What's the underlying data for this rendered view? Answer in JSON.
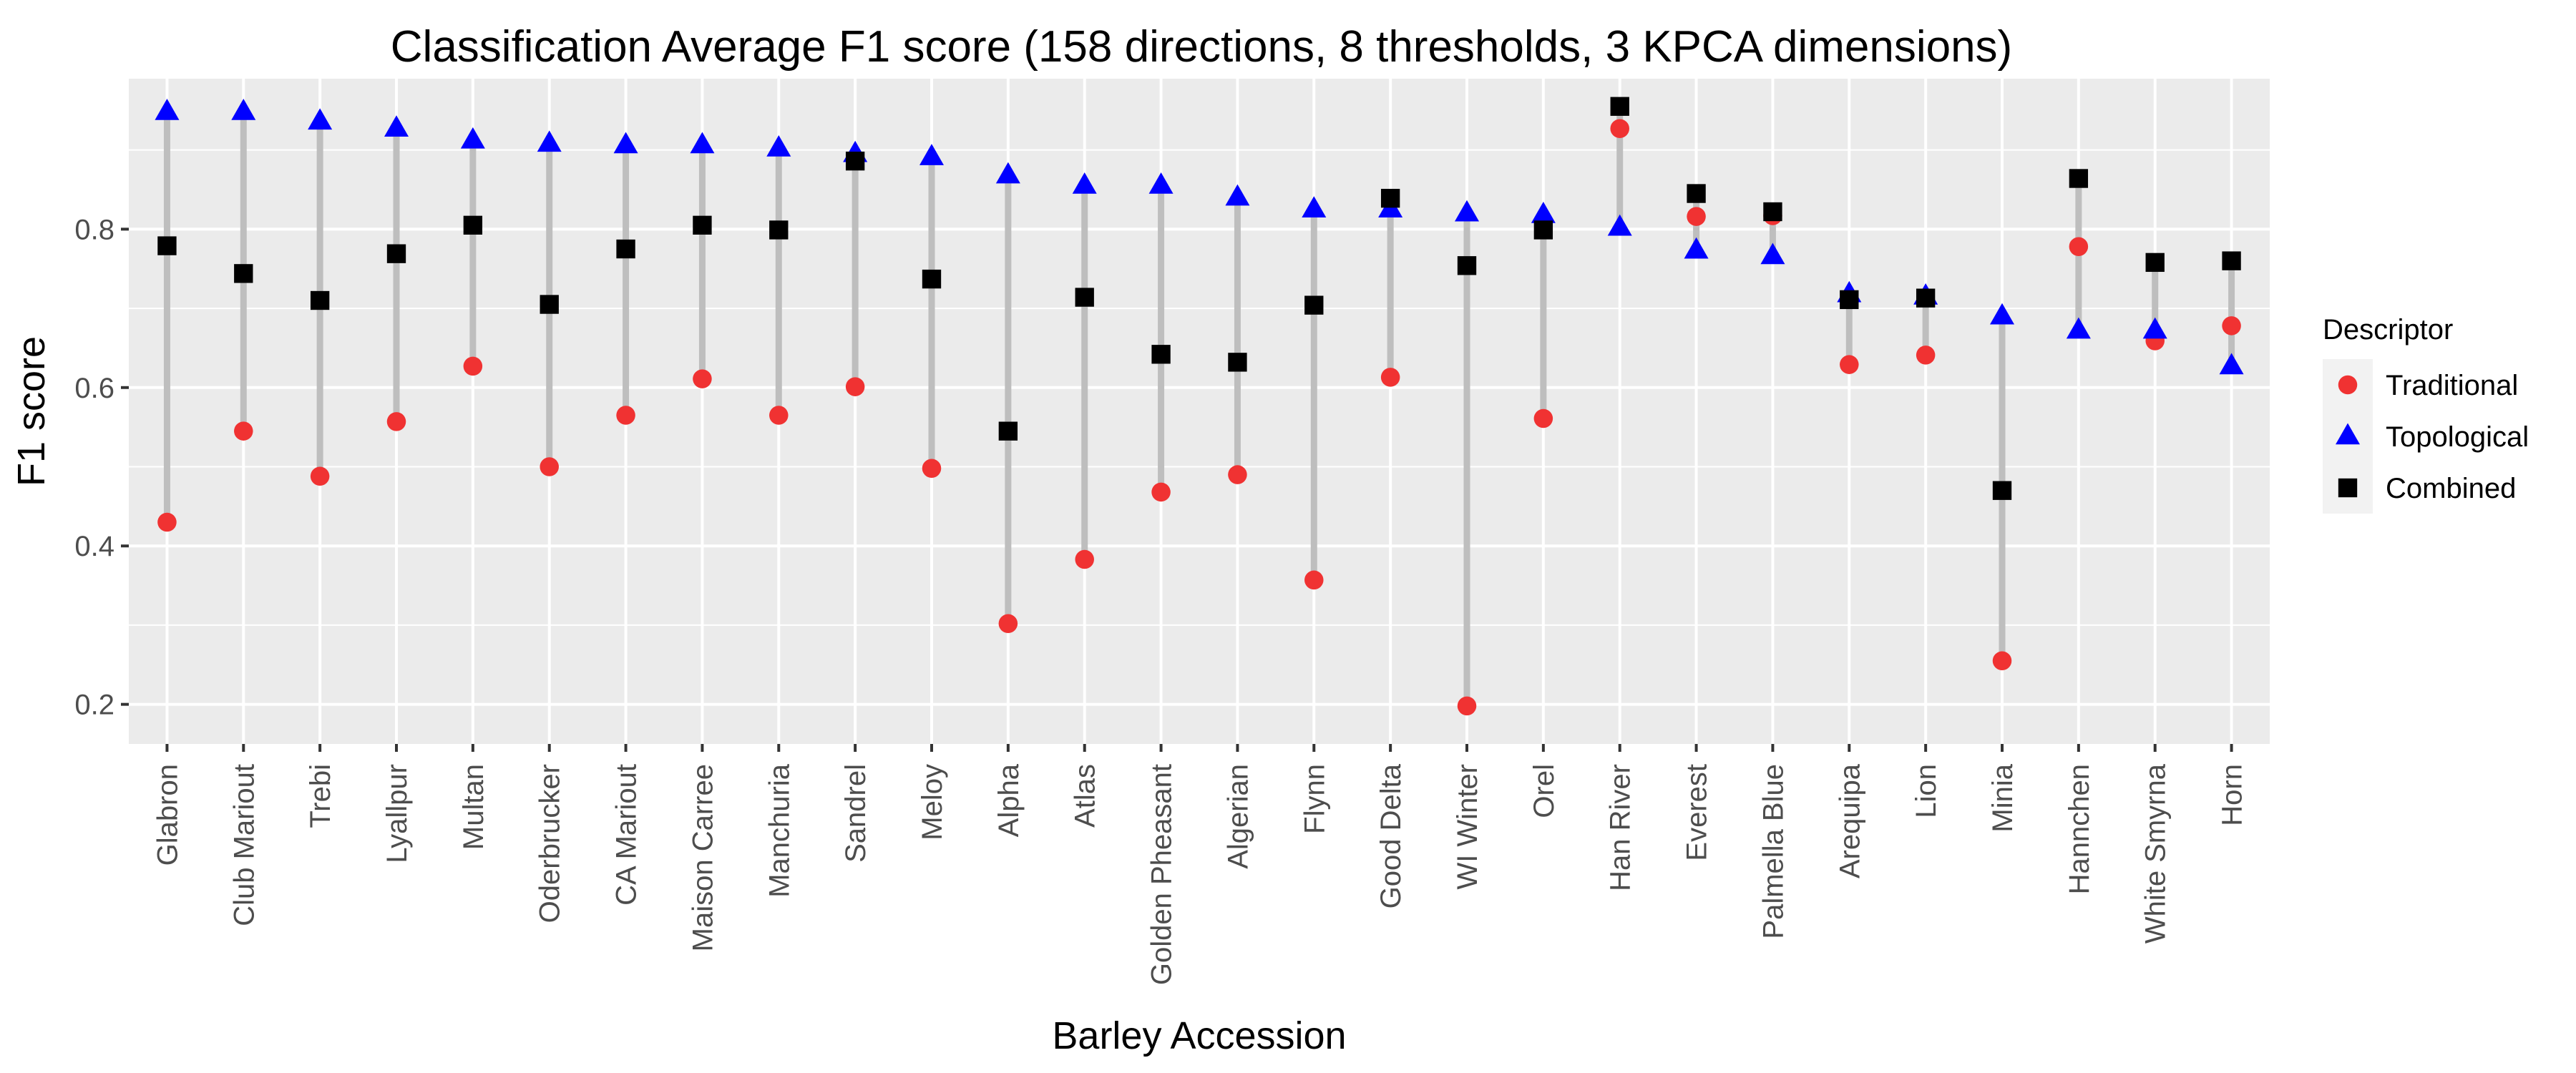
{
  "chart_data": {
    "type": "scatter",
    "title": "Classification Average F1 score (158 directions, 8 thresholds, 3 KPCA dimensions)",
    "xlabel": "Barley Accession",
    "ylabel": "F1 score",
    "ylim": [
      0.15,
      0.99
    ],
    "yticks": [
      0.2,
      0.4,
      0.6,
      0.8
    ],
    "ytick_labels": [
      "0.2",
      "0.4",
      "0.6",
      "0.8"
    ],
    "grid": true,
    "legend_title": "Descriptor",
    "legend_position": "right",
    "categories": [
      "Glabron",
      "Club Mariout",
      "Trebi",
      "Lyallpur",
      "Multan",
      "Oderbrucker",
      "CA Mariout",
      "Maison Carree",
      "Manchuria",
      "Sandrel",
      "Meloy",
      "Alpha",
      "Atlas",
      "Golden Pheasant",
      "Algerian",
      "Flynn",
      "Good Delta",
      "WI Winter",
      "Orel",
      "Han River",
      "Everest",
      "Palmella Blue",
      "Arequipa",
      "Lion",
      "Minia",
      "Hannchen",
      "White Smyrna",
      "Horn"
    ],
    "series": [
      {
        "name": "Traditional",
        "marker": "circle",
        "color": "#f03232",
        "values": [
          0.43,
          0.545,
          0.488,
          0.557,
          0.627,
          0.5,
          0.565,
          0.611,
          0.565,
          0.601,
          0.498,
          0.302,
          0.383,
          0.468,
          0.49,
          0.357,
          0.613,
          0.198,
          0.561,
          0.927,
          0.816,
          0.817,
          0.629,
          0.641,
          0.255,
          0.778,
          0.659,
          0.678
        ]
      },
      {
        "name": "Topological",
        "marker": "triangle",
        "color": "#0000ff",
        "values": [
          0.948,
          0.948,
          0.936,
          0.927,
          0.912,
          0.908,
          0.906,
          0.906,
          0.902,
          0.895,
          0.891,
          0.868,
          0.855,
          0.855,
          0.84,
          0.825,
          0.825,
          0.82,
          0.818,
          0.802,
          0.773,
          0.766,
          0.718,
          0.715,
          0.69,
          0.672,
          0.672,
          0.627
        ]
      },
      {
        "name": "Combined",
        "marker": "square",
        "color": "#000000",
        "values": [
          0.779,
          0.744,
          0.71,
          0.769,
          0.805,
          0.705,
          0.775,
          0.805,
          0.799,
          0.886,
          0.737,
          0.545,
          0.714,
          0.642,
          0.632,
          0.704,
          0.839,
          0.754,
          0.799,
          0.955,
          0.845,
          0.822,
          0.711,
          0.713,
          0.47,
          0.864,
          0.758,
          0.76
        ]
      }
    ]
  },
  "colors": {
    "panel_background": "#ebebeb",
    "grid_line": "#ffffff",
    "segment": "#bebebe",
    "legend_key_background": "#f2f2f2"
  }
}
